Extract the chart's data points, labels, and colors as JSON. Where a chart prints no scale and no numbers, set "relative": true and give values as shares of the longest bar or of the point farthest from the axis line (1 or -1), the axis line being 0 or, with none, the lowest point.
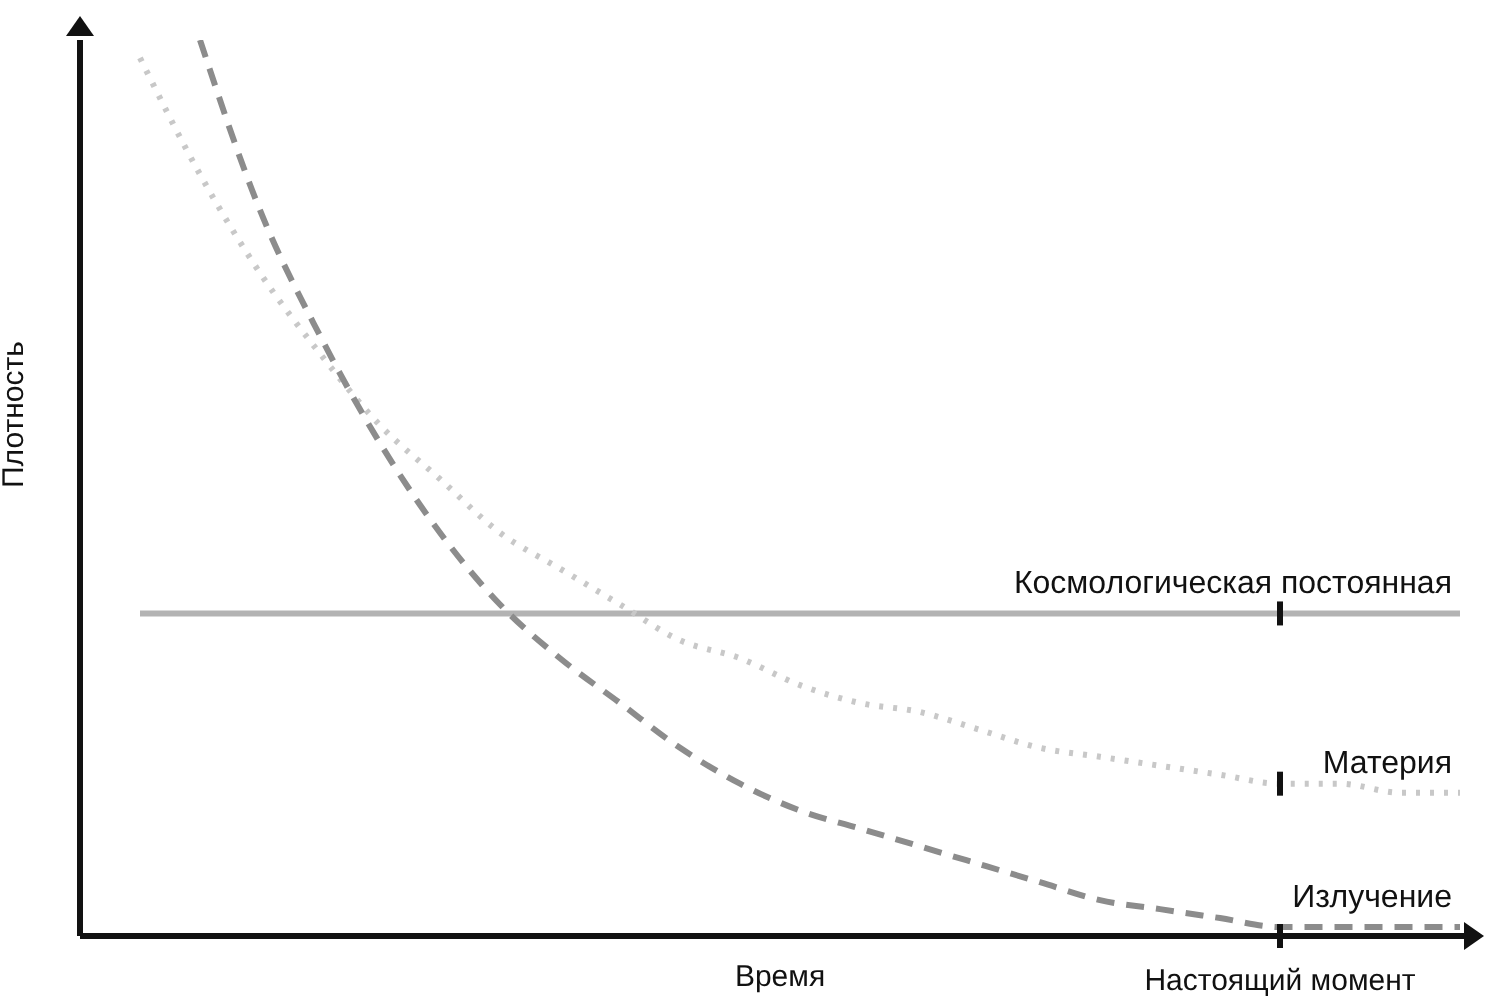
{
  "chart_data": {
    "type": "line",
    "xlabel": "Время",
    "ylabel": "Плотность",
    "relative": true,
    "marker": "none",
    "annotations": [
      "Настоящий момент"
    ],
    "categories": [
      null,
      null,
      null,
      null,
      null,
      null,
      null,
      null,
      null,
      null,
      null,
      null,
      null,
      null,
      null,
      null,
      null,
      null,
      null,
      null,
      null,
      null,
      null
    ],
    "series": [
      {
        "name": "Космологическая постоянная",
        "color": "#b3b3b3",
        "line_style": "solid",
        "values": [
          0.36,
          0.36,
          0.36,
          0.36,
          0.36,
          0.36,
          0.36,
          0.36,
          0.36,
          0.36,
          0.36,
          0.36,
          0.36,
          0.36,
          0.36,
          0.36,
          0.36,
          0.36,
          0.36,
          0.36,
          0.36,
          0.36,
          0.36
        ]
      },
      {
        "name": "Материя",
        "color": "#c8c8c8",
        "line_style": "dotted",
        "values": [
          0.98,
          0.85,
          0.74,
          0.65,
          0.57,
          0.51,
          0.45,
          0.41,
          0.37,
          0.33,
          0.31,
          0.28,
          0.26,
          0.25,
          0.23,
          0.21,
          0.2,
          0.19,
          0.18,
          0.17,
          0.17,
          0.16,
          0.16
        ]
      },
      {
        "name": "Излучение",
        "color": "#8c8c8c",
        "line_style": "dashed",
        "values": [
          null,
          1,
          0.81,
          0.67,
          0.55,
          0.45,
          0.37,
          0.31,
          0.26,
          0.21,
          0.17,
          0.14,
          0.12,
          0.1,
          0.08,
          0.06,
          0.04,
          0.03,
          0.02,
          0.01,
          0.01,
          0.01,
          0.01
        ]
      }
    ]
  }
}
